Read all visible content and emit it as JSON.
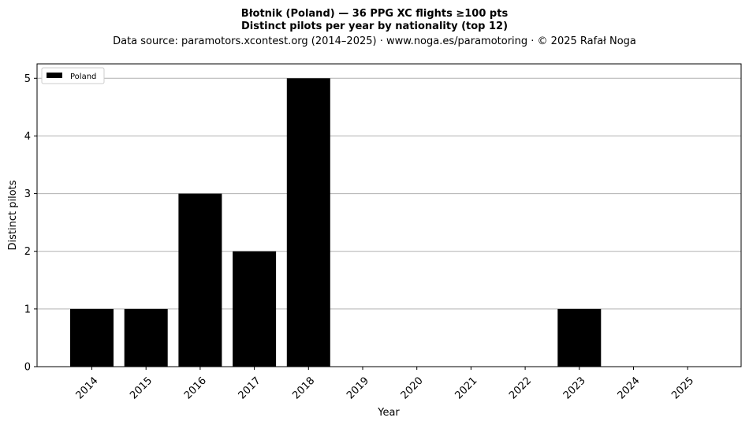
{
  "chart_data": {
    "type": "bar",
    "title_line1": "Błotnik (Poland)  —  36 PPG XC flights ≥100 pts",
    "title_line2": "Distinct pilots per year by nationality (top 12)",
    "subtitle": "Data source: paramotors.xcontest.org (2014–2025)  ·  www.noga.es/paramotoring  ·  © 2025 Rafał Noga",
    "xlabel": "Year",
    "ylabel": "Distinct pilots",
    "categories": [
      "2014",
      "2015",
      "2016",
      "2017",
      "2018",
      "2019",
      "2020",
      "2021",
      "2022",
      "2023",
      "2024",
      "2025"
    ],
    "series": [
      {
        "name": "Poland",
        "color": "#000000",
        "values": [
          1,
          1,
          3,
          2,
          5,
          0,
          0,
          0,
          0,
          1,
          0,
          0
        ]
      }
    ],
    "ylim": [
      0,
      5.25
    ],
    "yticks": [
      0,
      1,
      2,
      3,
      4,
      5
    ],
    "grid": "y",
    "legend_position": "top-left"
  }
}
